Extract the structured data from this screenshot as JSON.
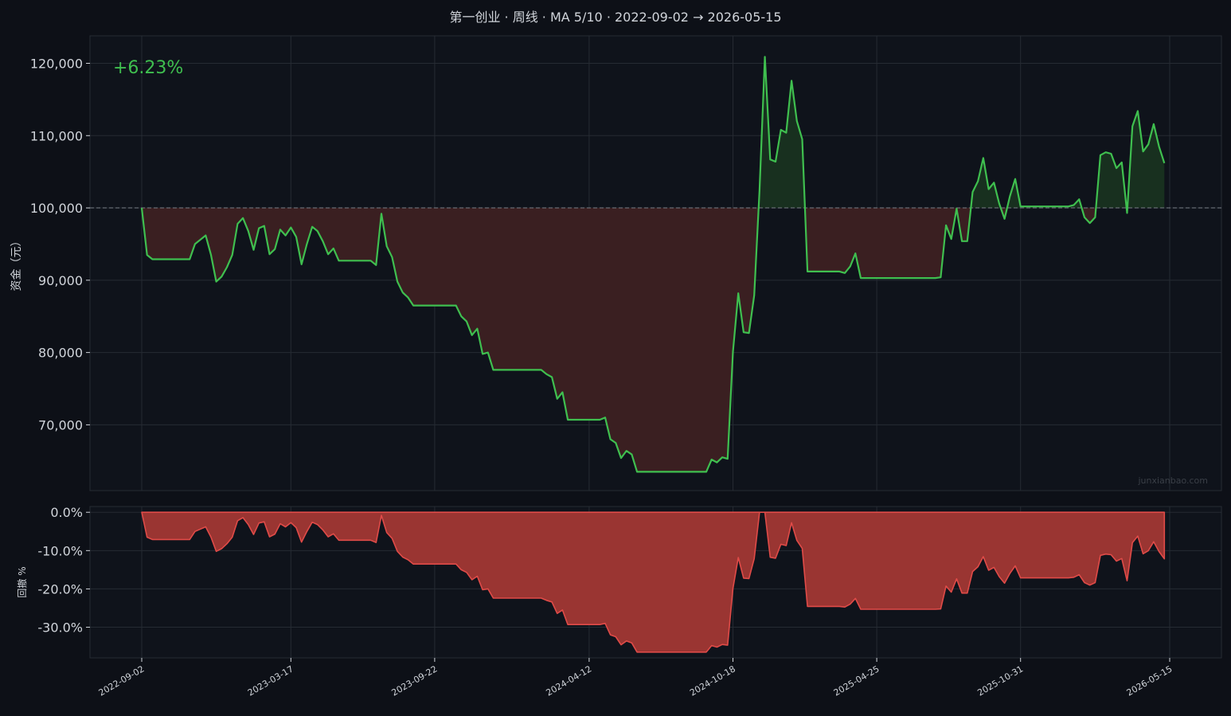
{
  "title": "第一创业 · 周线 · MA 5/10 · 2022-09-02 → 2026-05-15",
  "return_label": "+6.23%",
  "watermark": "junxianbao.com",
  "colors": {
    "background": "#0d1017",
    "plot_bg": "#0f131b",
    "grid": "#262b33",
    "text": "#d0d4da",
    "equity_line": "#3fbf4f",
    "gain_fill": "#18301f",
    "loss_fill": "#3a1f21",
    "drawdown_line": "#e04b48",
    "drawdown_fill": "#9a3532",
    "baseline": "#7a7f87"
  },
  "chart_data": [
    {
      "type": "area",
      "name": "equity",
      "ylabel": "资金（元）",
      "ylim": [
        60900,
        123800
      ],
      "yticks": [
        70000,
        80000,
        90000,
        100000,
        110000,
        120000
      ],
      "ytick_labels": [
        "70,000",
        "80,000",
        "90,000",
        "100,000",
        "110,000",
        "120,000"
      ],
      "baseline": 100000,
      "x_start": "2022-09-02",
      "x_end": "2026-05-15",
      "xticks": [
        "2022-09-02",
        "2023-03-17",
        "2023-09-22",
        "2024-04-12",
        "2024-10-18",
        "2025-04-25",
        "2025-10-31",
        "2026-05-15"
      ],
      "points": [
        [
          "2022-09-02",
          100000
        ],
        [
          "2022-09-09",
          93500
        ],
        [
          "2022-09-16",
          92900
        ],
        [
          "2022-11-04",
          92900
        ],
        [
          "2022-11-11",
          95000
        ],
        [
          "2022-11-25",
          96200
        ],
        [
          "2022-12-02",
          93500
        ],
        [
          "2022-12-09",
          89800
        ],
        [
          "2022-12-16",
          90500
        ],
        [
          "2022-12-23",
          91800
        ],
        [
          "2022-12-30",
          93500
        ],
        [
          "2023-01-06",
          97800
        ],
        [
          "2023-01-13",
          98600
        ],
        [
          "2023-01-20",
          96800
        ],
        [
          "2023-01-27",
          94200
        ],
        [
          "2023-02-03",
          97200
        ],
        [
          "2023-02-10",
          97500
        ],
        [
          "2023-02-17",
          93600
        ],
        [
          "2023-02-24",
          94300
        ],
        [
          "2023-03-03",
          97000
        ],
        [
          "2023-03-10",
          96200
        ],
        [
          "2023-03-17",
          97300
        ],
        [
          "2023-03-24",
          96000
        ],
        [
          "2023-03-31",
          92200
        ],
        [
          "2023-04-07",
          95000
        ],
        [
          "2023-04-14",
          97400
        ],
        [
          "2023-04-21",
          96800
        ],
        [
          "2023-04-28",
          95400
        ],
        [
          "2023-05-05",
          93600
        ],
        [
          "2023-05-12",
          94400
        ],
        [
          "2023-05-19",
          92700
        ],
        [
          "2023-06-30",
          92700
        ],
        [
          "2023-07-07",
          92100
        ],
        [
          "2023-07-14",
          99200
        ],
        [
          "2023-07-21",
          94700
        ],
        [
          "2023-07-28",
          93200
        ],
        [
          "2023-08-04",
          89800
        ],
        [
          "2023-08-11",
          88300
        ],
        [
          "2023-08-18",
          87600
        ],
        [
          "2023-08-25",
          86500
        ],
        [
          "2023-10-20",
          86500
        ],
        [
          "2023-10-27",
          85000
        ],
        [
          "2023-11-03",
          84300
        ],
        [
          "2023-11-10",
          82400
        ],
        [
          "2023-11-17",
          83300
        ],
        [
          "2023-11-24",
          79800
        ],
        [
          "2023-12-01",
          80000
        ],
        [
          "2023-12-08",
          77600
        ],
        [
          "2024-02-09",
          77600
        ],
        [
          "2024-02-16",
          77000
        ],
        [
          "2024-02-23",
          76600
        ],
        [
          "2024-03-01",
          73600
        ],
        [
          "2024-03-08",
          74500
        ],
        [
          "2024-03-15",
          70700
        ],
        [
          "2024-04-26",
          70700
        ],
        [
          "2024-05-03",
          71000
        ],
        [
          "2024-05-10",
          68000
        ],
        [
          "2024-05-17",
          67500
        ],
        [
          "2024-05-24",
          65400
        ],
        [
          "2024-05-31",
          66400
        ],
        [
          "2024-06-07",
          65900
        ],
        [
          "2024-06-14",
          63500
        ],
        [
          "2024-09-13",
          63500
        ],
        [
          "2024-09-20",
          65200
        ],
        [
          "2024-09-27",
          64800
        ],
        [
          "2024-10-04",
          65500
        ],
        [
          "2024-10-11",
          65300
        ],
        [
          "2024-10-18",
          80100
        ],
        [
          "2024-10-25",
          88200
        ],
        [
          "2024-11-01",
          82800
        ],
        [
          "2024-11-08",
          82700
        ],
        [
          "2024-11-15",
          87900
        ],
        [
          "2024-11-22",
          102500
        ],
        [
          "2024-11-29",
          120900
        ],
        [
          "2024-12-06",
          106700
        ],
        [
          "2024-12-13",
          106400
        ],
        [
          "2024-12-20",
          110800
        ],
        [
          "2024-12-27",
          110400
        ],
        [
          "2025-01-03",
          117600
        ],
        [
          "2025-01-10",
          112000
        ],
        [
          "2025-01-17",
          109500
        ],
        [
          "2025-01-24",
          91200
        ],
        [
          "2025-03-07",
          91200
        ],
        [
          "2025-03-14",
          91000
        ],
        [
          "2025-03-21",
          91900
        ],
        [
          "2025-03-28",
          93700
        ],
        [
          "2025-04-04",
          90300
        ],
        [
          "2025-07-11",
          90300
        ],
        [
          "2025-07-18",
          90400
        ],
        [
          "2025-07-25",
          97600
        ],
        [
          "2025-08-01",
          95700
        ],
        [
          "2025-08-08",
          99900
        ],
        [
          "2025-08-15",
          95400
        ],
        [
          "2025-08-22",
          95400
        ],
        [
          "2025-08-29",
          102200
        ],
        [
          "2025-09-05",
          103700
        ],
        [
          "2025-09-12",
          106900
        ],
        [
          "2025-09-19",
          102600
        ],
        [
          "2025-09-26",
          103500
        ],
        [
          "2025-10-03",
          100600
        ],
        [
          "2025-10-10",
          98500
        ],
        [
          "2025-10-17",
          101600
        ],
        [
          "2025-10-24",
          104000
        ],
        [
          "2025-10-31",
          100200
        ],
        [
          "2026-01-02",
          100200
        ],
        [
          "2026-01-09",
          100400
        ],
        [
          "2026-01-16",
          101200
        ],
        [
          "2026-01-23",
          98700
        ],
        [
          "2026-01-30",
          97900
        ],
        [
          "2026-02-06",
          98700
        ],
        [
          "2026-02-13",
          107300
        ],
        [
          "2026-02-20",
          107700
        ],
        [
          "2026-02-27",
          107500
        ],
        [
          "2026-03-06",
          105500
        ],
        [
          "2026-03-13",
          106300
        ],
        [
          "2026-03-20",
          99300
        ],
        [
          "2026-03-27",
          111300
        ],
        [
          "2026-04-03",
          113400
        ],
        [
          "2026-04-10",
          107800
        ],
        [
          "2026-04-17",
          108800
        ],
        [
          "2026-04-24",
          111600
        ],
        [
          "2026-05-01",
          108500
        ],
        [
          "2026-05-08",
          106200
        ]
      ]
    },
    {
      "type": "area",
      "name": "drawdown",
      "ylabel": "回撤 %",
      "ylim": [
        -38,
        1.5
      ],
      "yticks": [
        0,
        -10,
        -20,
        -30
      ],
      "ytick_labels": [
        "0.0%",
        "-10.0%",
        "-20.0%",
        "-30.0%"
      ],
      "x_start": "2022-09-02",
      "x_end": "2026-05-15"
    }
  ]
}
